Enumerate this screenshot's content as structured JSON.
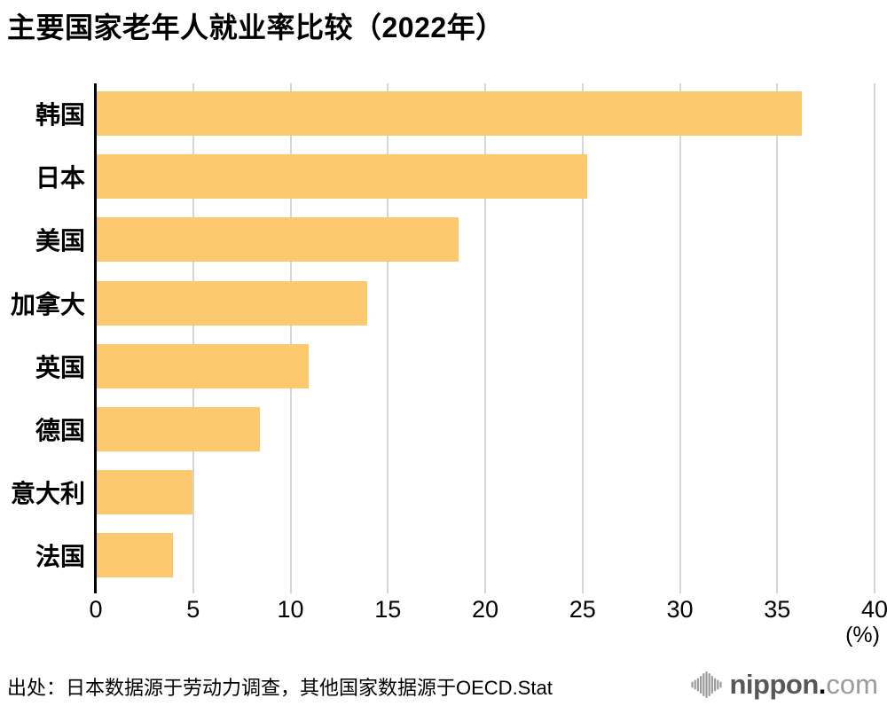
{
  "title": "主要国家老年人就业率比较（2022年）",
  "chart_data": {
    "type": "bar",
    "orientation": "horizontal",
    "title": "主要国家老年人就业率比较（2022年）",
    "categories": [
      "韩国",
      "日本",
      "美国",
      "加拿大",
      "英国",
      "德国",
      "意大利",
      "法国"
    ],
    "values": [
      36.2,
      25.2,
      18.6,
      13.9,
      10.9,
      8.4,
      4.9,
      3.9
    ],
    "xlabel": "(%)",
    "xlim": [
      0,
      40
    ],
    "xticks": [
      0,
      5,
      10,
      15,
      20,
      25,
      30,
      35,
      40
    ],
    "grid": true,
    "legend": "none",
    "bar_color": "#FCC96E"
  },
  "colors": {
    "bar": "#FCC96E",
    "gridline": "#D6D6D6",
    "axis": "#000000",
    "logo_gray": "#9B9B9B",
    "logo_dark": "#595757",
    "logo_red": "#EE1C25"
  },
  "footer": {
    "source": "出处：日本数据源于劳动力调查，其他国家数据源于OECD.Stat",
    "logo": {
      "icon": "audio-bars-icon",
      "brand_left": "nippon",
      "brand_dot": ".",
      "brand_right": "com"
    }
  }
}
